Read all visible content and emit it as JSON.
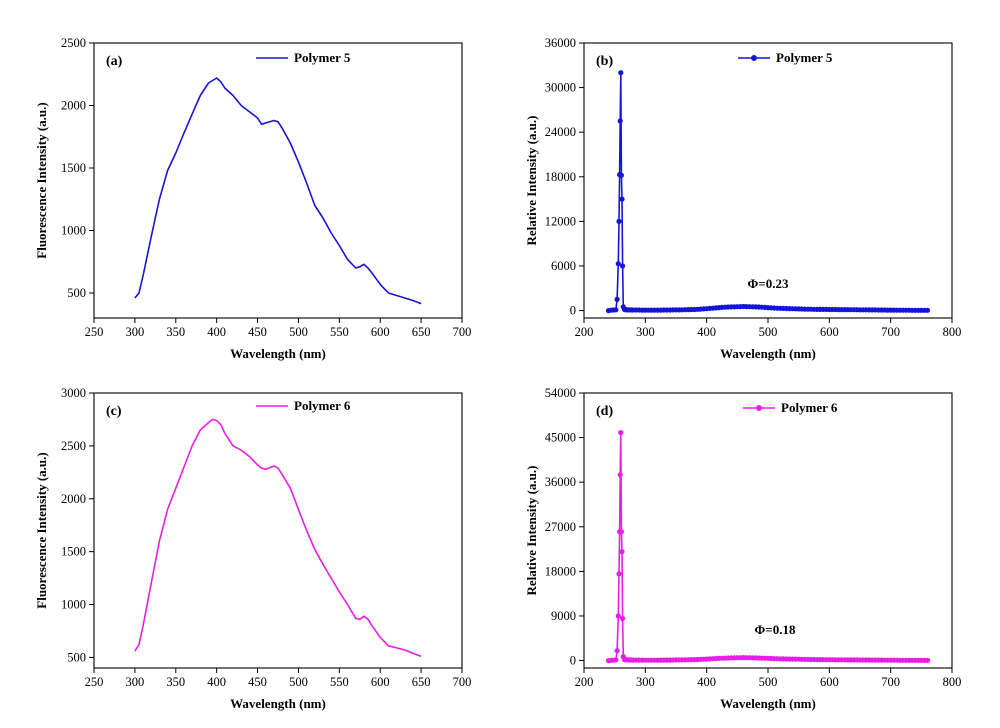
{
  "chart_data": [
    {
      "type": "line",
      "panel_label": "(a)",
      "xlabel": "Wavelength (nm)",
      "ylabel": "Fluorescence Intensity (a.u.)",
      "xlim": [
        250,
        700
      ],
      "ylim": [
        300,
        2500
      ],
      "xticks": [
        250,
        300,
        350,
        400,
        450,
        500,
        550,
        600,
        650,
        700
      ],
      "yticks": [
        500,
        1000,
        1500,
        2000,
        2500
      ],
      "legend": "top-center",
      "series": [
        {
          "name": "Polymer 5",
          "color": "#1515d6",
          "markers": false,
          "x": [
            300,
            305,
            310,
            320,
            330,
            340,
            350,
            360,
            370,
            380,
            390,
            395,
            400,
            405,
            410,
            420,
            430,
            440,
            450,
            455,
            460,
            470,
            475,
            480,
            490,
            500,
            510,
            520,
            530,
            540,
            550,
            560,
            570,
            575,
            580,
            585,
            590,
            600,
            610,
            620,
            630,
            640,
            650
          ],
          "y": [
            460,
            500,
            640,
            950,
            1250,
            1480,
            1620,
            1780,
            1930,
            2080,
            2180,
            2200,
            2220,
            2190,
            2140,
            2080,
            2000,
            1950,
            1900,
            1850,
            1860,
            1880,
            1870,
            1820,
            1700,
            1550,
            1380,
            1200,
            1100,
            980,
            880,
            770,
            700,
            710,
            730,
            700,
            660,
            570,
            500,
            480,
            460,
            440,
            415
          ]
        }
      ]
    },
    {
      "type": "line",
      "panel_label": "(b)",
      "xlabel": "Wavelength (nm)",
      "ylabel": "Relative Intensity (a.u.)",
      "xlim": [
        200,
        800
      ],
      "ylim": [
        -1000,
        36000
      ],
      "xticks": [
        200,
        300,
        400,
        500,
        600,
        700,
        800
      ],
      "yticks": [
        0,
        6000,
        12000,
        18000,
        24000,
        30000,
        36000
      ],
      "legend": "top-center",
      "annotation": "Φ=0.23",
      "series": [
        {
          "name": "Polymer 5",
          "color": "#1515d6",
          "markers": true,
          "x": [
            240,
            244,
            248,
            252,
            254,
            256,
            257,
            258,
            259,
            260,
            261,
            262,
            263,
            264,
            266,
            270,
            280,
            300,
            320,
            340,
            360,
            380,
            400,
            420,
            440,
            460,
            480,
            500,
            520,
            540,
            560,
            580,
            600,
            620,
            640,
            660,
            680,
            700,
            720,
            740,
            760
          ],
          "y": [
            0,
            50,
            80,
            100,
            1500,
            6300,
            12000,
            18300,
            25500,
            32000,
            18200,
            15000,
            6000,
            500,
            150,
            100,
            80,
            60,
            60,
            80,
            100,
            150,
            250,
            400,
            500,
            550,
            500,
            400,
            300,
            250,
            200,
            160,
            150,
            130,
            120,
            100,
            80,
            60,
            50,
            40,
            30
          ]
        }
      ]
    },
    {
      "type": "line",
      "panel_label": "(c)",
      "xlabel": "Wavelength (nm)",
      "ylabel": "Fluorescence Intensity (a.u.)",
      "xlim": [
        250,
        700
      ],
      "ylim": [
        400,
        3000
      ],
      "xticks": [
        250,
        300,
        350,
        400,
        450,
        500,
        550,
        600,
        650,
        700
      ],
      "yticks": [
        500,
        1000,
        1500,
        2000,
        2500,
        3000
      ],
      "legend": "top-center",
      "series": [
        {
          "name": "Polymer 6",
          "color": "#e61ee6",
          "markers": false,
          "x": [
            300,
            305,
            310,
            320,
            330,
            340,
            350,
            360,
            370,
            380,
            390,
            395,
            400,
            405,
            410,
            420,
            430,
            440,
            450,
            455,
            460,
            470,
            475,
            480,
            490,
            500,
            510,
            520,
            530,
            540,
            550,
            560,
            570,
            575,
            580,
            585,
            590,
            600,
            610,
            620,
            630,
            640,
            650
          ],
          "y": [
            560,
            620,
            800,
            1200,
            1600,
            1900,
            2100,
            2300,
            2500,
            2650,
            2720,
            2750,
            2740,
            2700,
            2620,
            2500,
            2460,
            2400,
            2320,
            2290,
            2280,
            2310,
            2290,
            2230,
            2100,
            1900,
            1700,
            1520,
            1380,
            1250,
            1120,
            1000,
            870,
            860,
            890,
            860,
            800,
            690,
            610,
            590,
            570,
            540,
            510
          ]
        }
      ]
    },
    {
      "type": "line",
      "panel_label": "(d)",
      "xlabel": "Wavelength (nm)",
      "ylabel": "Relative Intensity (a.u.)",
      "xlim": [
        200,
        800
      ],
      "ylim": [
        -1500,
        54000
      ],
      "xticks": [
        200,
        300,
        400,
        500,
        600,
        700,
        800
      ],
      "yticks": [
        0,
        9000,
        18000,
        27000,
        36000,
        45000,
        54000
      ],
      "legend": "top-center",
      "annotation": "Φ=0.18",
      "series": [
        {
          "name": "Polymer 6",
          "color": "#e61ee6",
          "markers": true,
          "x": [
            240,
            244,
            248,
            252,
            254,
            256,
            257,
            258,
            259,
            260,
            261,
            262,
            263,
            264,
            266,
            270,
            280,
            300,
            320,
            340,
            360,
            380,
            400,
            420,
            440,
            460,
            480,
            500,
            520,
            540,
            560,
            580,
            600,
            620,
            640,
            660,
            680,
            700,
            720,
            740,
            760
          ],
          "y": [
            0,
            50,
            80,
            150,
            2000,
            9000,
            17500,
            26000,
            37500,
            46000,
            26000,
            22000,
            8500,
            800,
            200,
            150,
            100,
            80,
            80,
            100,
            150,
            200,
            300,
            450,
            550,
            600,
            550,
            450,
            350,
            300,
            250,
            200,
            180,
            150,
            130,
            110,
            90,
            70,
            60,
            50,
            40
          ]
        }
      ]
    }
  ]
}
